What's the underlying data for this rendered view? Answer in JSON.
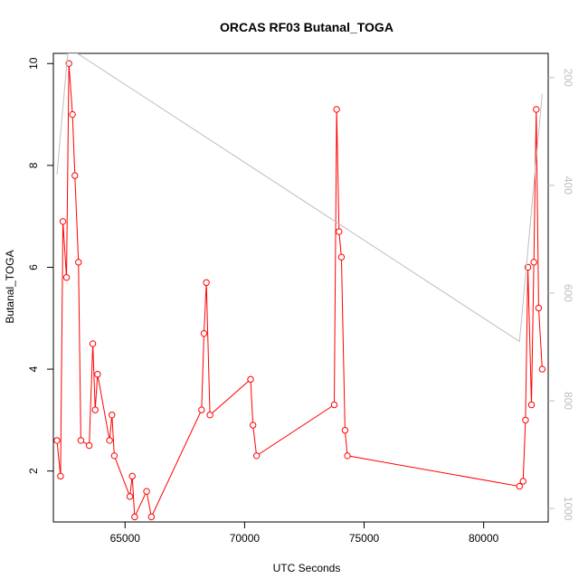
{
  "chart_data": {
    "type": "line",
    "title": "ORCAS RF03 Butanal_TOGA",
    "xlabel": "UTC Seconds",
    "ylabel": "Butanal_TOGA",
    "xlim": [
      62000,
      82700
    ],
    "ylim": [
      1.0,
      10.2
    ],
    "x_ticks": [
      65000,
      70000,
      75000,
      80000
    ],
    "y_ticks": [
      2,
      4,
      6,
      8,
      10
    ],
    "grid": false,
    "series": [
      {
        "color": "#ff0000",
        "marker": "open-circle",
        "points": [
          [
            62150,
            2.6
          ],
          [
            62300,
            1.9
          ],
          [
            62400,
            6.9
          ],
          [
            62550,
            5.8
          ],
          [
            62650,
            10.0
          ],
          [
            62800,
            9.0
          ],
          [
            62900,
            7.8
          ],
          [
            63050,
            6.1
          ],
          [
            63150,
            2.6
          ],
          [
            63500,
            2.5
          ],
          [
            63650,
            4.5
          ],
          [
            63750,
            3.2
          ],
          [
            63850,
            3.9
          ],
          [
            64350,
            2.6
          ],
          [
            64450,
            3.1
          ],
          [
            64550,
            2.3
          ],
          [
            65200,
            1.5
          ],
          [
            65300,
            1.9
          ],
          [
            65400,
            1.1
          ],
          [
            65900,
            1.6
          ],
          [
            66100,
            1.1
          ],
          [
            68200,
            3.2
          ],
          [
            68300,
            4.7
          ],
          [
            68400,
            5.7
          ],
          [
            68550,
            3.1
          ],
          [
            70250,
            3.8
          ],
          [
            70350,
            2.9
          ],
          [
            70500,
            2.3
          ],
          [
            73750,
            3.3
          ],
          [
            73850,
            9.1
          ],
          [
            73950,
            6.7
          ],
          [
            74050,
            6.2
          ],
          [
            74200,
            2.8
          ],
          [
            74300,
            2.3
          ],
          [
            81500,
            1.7
          ],
          [
            81650,
            1.8
          ],
          [
            81750,
            3.0
          ],
          [
            81850,
            6.0
          ],
          [
            82000,
            3.3
          ],
          [
            82100,
            6.1
          ],
          [
            82200,
            9.1
          ],
          [
            82300,
            5.2
          ],
          [
            82450,
            4.0
          ]
        ]
      },
      {
        "color": "#bebebe",
        "axis": "right",
        "ylim_right": [
          1025,
          155
        ],
        "y_ticks_right": [
          200,
          400,
          600,
          800,
          1000
        ],
        "points": [
          [
            62150,
            380
          ],
          [
            62600,
            155
          ],
          [
            63000,
            155
          ],
          [
            81500,
            690
          ],
          [
            82450,
            230
          ]
        ]
      }
    ]
  }
}
